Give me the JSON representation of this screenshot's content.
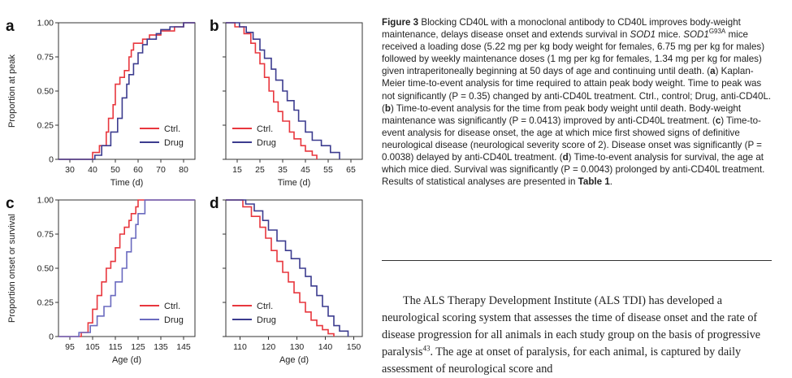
{
  "chart_data": [
    {
      "panel": "a",
      "type": "line",
      "step": true,
      "xlabel": "Time (d)",
      "ylabel": "Proportion at peak",
      "xlim": [
        25,
        85
      ],
      "ylim": [
        0,
        1
      ],
      "xticks": [
        30,
        40,
        50,
        60,
        70,
        80
      ],
      "yticks": [
        "0",
        "0.25",
        "0.50",
        "0.75",
        "1.00"
      ],
      "legend_position": "bottom-right",
      "series": [
        {
          "name": "Ctrl.",
          "color": "#e8373e",
          "x": [
            25,
            40,
            43,
            46,
            47,
            49,
            50,
            51,
            52,
            54,
            56,
            57,
            58,
            62,
            65,
            70,
            76,
            80,
            85
          ],
          "y": [
            0,
            0.05,
            0.1,
            0.2,
            0.3,
            0.4,
            0.55,
            0.55,
            0.6,
            0.65,
            0.75,
            0.8,
            0.85,
            0.88,
            0.91,
            0.94,
            0.97,
            1.0,
            1.0
          ]
        },
        {
          "name": "Drug",
          "color": "#3c3c8f",
          "x": [
            25,
            41,
            44,
            48,
            51,
            53,
            55,
            56,
            58,
            60,
            62,
            64,
            68,
            70,
            74,
            80,
            85
          ],
          "y": [
            0,
            0.03,
            0.1,
            0.2,
            0.3,
            0.45,
            0.55,
            0.62,
            0.7,
            0.78,
            0.84,
            0.88,
            0.92,
            0.95,
            0.97,
            1.0,
            1.0
          ]
        }
      ]
    },
    {
      "panel": "b",
      "type": "line",
      "step": true,
      "xlabel": "Time (d)",
      "ylabel": "",
      "xlim": [
        10,
        70
      ],
      "ylim": [
        0,
        1
      ],
      "xticks": [
        15,
        25,
        35,
        45,
        55,
        65
      ],
      "yticks": [],
      "legend_position": "bottom-left",
      "series": [
        {
          "name": "Ctrl.",
          "color": "#e8373e",
          "x": [
            10,
            14,
            18,
            21,
            23,
            25,
            27,
            29,
            31,
            33,
            35,
            38,
            40,
            43,
            45,
            48,
            50
          ],
          "y": [
            1.0,
            0.97,
            0.92,
            0.85,
            0.78,
            0.7,
            0.6,
            0.5,
            0.42,
            0.35,
            0.28,
            0.2,
            0.15,
            0.1,
            0.06,
            0.03,
            0.0
          ]
        },
        {
          "name": "Drug",
          "color": "#3c3c8f",
          "x": [
            10,
            16,
            19,
            22,
            25,
            27,
            30,
            32,
            35,
            37,
            40,
            42,
            45,
            48,
            52,
            56,
            60
          ],
          "y": [
            1.0,
            0.97,
            0.93,
            0.88,
            0.8,
            0.74,
            0.66,
            0.58,
            0.5,
            0.43,
            0.36,
            0.28,
            0.2,
            0.14,
            0.1,
            0.05,
            0.0
          ]
        }
      ]
    },
    {
      "panel": "c",
      "type": "line",
      "step": true,
      "xlabel": "Age (d)",
      "ylabel": "Proportion onset or survival",
      "xlim": [
        90,
        150
      ],
      "ylim": [
        0,
        1
      ],
      "xticks": [
        95,
        105,
        115,
        125,
        135,
        145
      ],
      "yticks": [
        "0",
        "0.25",
        "0.50",
        "0.75",
        "1.00"
      ],
      "legend_position": "bottom-right",
      "series": [
        {
          "name": "Ctrl.",
          "color": "#e8373e",
          "x": [
            90,
            100,
            103,
            105,
            107,
            109,
            111,
            113,
            115,
            117,
            119,
            121,
            122,
            124,
            125,
            150
          ],
          "y": [
            0,
            0.03,
            0.1,
            0.2,
            0.3,
            0.4,
            0.5,
            0.55,
            0.65,
            0.75,
            0.8,
            0.85,
            0.9,
            0.95,
            1.0,
            1.0
          ]
        },
        {
          "name": "Drug",
          "color": "#6a6abf",
          "x": [
            90,
            99,
            104,
            107,
            110,
            113,
            115,
            118,
            120,
            122,
            124,
            125,
            128,
            150
          ],
          "y": [
            0,
            0.03,
            0.08,
            0.15,
            0.22,
            0.3,
            0.4,
            0.5,
            0.62,
            0.72,
            0.82,
            0.9,
            1.0,
            1.0
          ]
        }
      ]
    },
    {
      "panel": "d",
      "type": "line",
      "step": true,
      "xlabel": "Age (d)",
      "ylabel": "",
      "xlim": [
        105,
        153
      ],
      "ylim": [
        0,
        1
      ],
      "xticks": [
        110,
        120,
        130,
        140,
        150
      ],
      "yticks": [],
      "legend_position": "bottom-left",
      "series": [
        {
          "name": "Ctrl.",
          "color": "#e8373e",
          "x": [
            105,
            111,
            114,
            117,
            119,
            121,
            123,
            125,
            127,
            129,
            131,
            133,
            135,
            137,
            139,
            141,
            143
          ],
          "y": [
            1.0,
            0.95,
            0.88,
            0.8,
            0.72,
            0.63,
            0.55,
            0.47,
            0.4,
            0.32,
            0.25,
            0.18,
            0.12,
            0.08,
            0.05,
            0.02,
            0.0
          ]
        },
        {
          "name": "Drug",
          "color": "#3c3c8f",
          "x": [
            105,
            112,
            115,
            118,
            120,
            123,
            126,
            128,
            131,
            133,
            135,
            137,
            139,
            141,
            143,
            145,
            148
          ],
          "y": [
            1.0,
            0.97,
            0.92,
            0.85,
            0.78,
            0.7,
            0.63,
            0.57,
            0.5,
            0.44,
            0.37,
            0.3,
            0.22,
            0.15,
            0.08,
            0.04,
            0.0
          ]
        }
      ]
    }
  ],
  "caption": {
    "figure_label": "Figure 3",
    "text_1": "Blocking CD40L with a monoclonal antibody to CD40L improves body-weight maintenance, delays disease onset and extends survival in ",
    "sod1": "SOD1",
    "text_2": " mice. ",
    "sod1_g93a": "SOD1",
    "g93a_sup": "G93A",
    "text_3": " mice received a loading dose (5.22 mg per kg body weight for females, 6.75 mg per kg for males) followed by weekly maintenance doses (1 mg per kg for females, 1.34 mg per kg for males) given intraperitoneally beginning at 50 days of age and continuing until death. (",
    "label_a": "a",
    "text_a": ") Kaplan-Meier time-to-event analysis for time required to attain peak body weight. Time to peak was not significantly (P = 0.35) changed by anti-CD40L treatment. Ctrl., control; Drug, anti-CD40L. (",
    "label_b": "b",
    "text_b": ") Time-to-event analysis for the time from peak body weight until death. Body-weight maintenance was significantly (P = 0.0413) improved by anti-CD40L treatment. (",
    "label_c": "c",
    "text_c": ") Time-to-event analysis for disease onset, the age at which mice first showed signs of definitive neurological disease (neurological severity score of 2). Disease onset was significantly (P = 0.0038) delayed by anti-CD40L treatment. (",
    "label_d": "d",
    "text_d": ") Time-to-event analysis for survival, the age at which mice died. Survival was significantly (P = 0.0043) prolonged by anti-CD40L treatment. Results of statistical analyses are presented in ",
    "table_ref": "Table 1",
    "text_end": "."
  },
  "body": {
    "text_1": "The ALS Therapy Development Institute (ALS TDI) has developed a neurological scoring system that assesses the time of disease onset and the rate of disease progression for all animals in each study group on the basis of progressive paralysis",
    "ref": "43",
    "text_2": ". The age at onset of paralysis, for each animal, is captured by daily assessment of neurological score and"
  }
}
